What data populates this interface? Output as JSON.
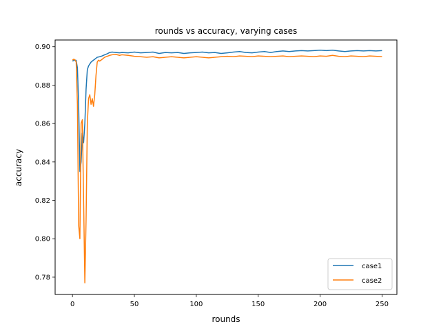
{
  "chart_data": {
    "type": "line",
    "title": "rounds vs accuracy, varying cases",
    "xlabel": "rounds",
    "ylabel": "accuracy",
    "xlim": [
      -14,
      262
    ],
    "ylim": [
      0.771,
      0.9035
    ],
    "xticks": [
      0,
      50,
      100,
      150,
      200,
      250
    ],
    "xtick_labels": [
      "0",
      "50",
      "100",
      "150",
      "200",
      "250"
    ],
    "yticks": [
      0.78,
      0.8,
      0.82,
      0.84,
      0.86,
      0.88,
      0.9
    ],
    "ytick_labels": [
      "0.78",
      "0.80",
      "0.82",
      "0.84",
      "0.86",
      "0.88",
      "0.90"
    ],
    "grid": false,
    "legend": "lower-right",
    "series": [
      {
        "name": "case1",
        "color": "#1f77b4",
        "x": [
          0,
          1,
          2,
          3,
          4,
          5,
          6,
          7,
          8,
          9,
          10,
          11,
          12,
          13,
          14,
          15,
          16,
          17,
          18,
          19,
          20,
          22,
          24,
          26,
          28,
          30,
          32,
          35,
          38,
          40,
          45,
          50,
          55,
          60,
          65,
          70,
          75,
          80,
          85,
          90,
          95,
          100,
          105,
          110,
          115,
          120,
          125,
          130,
          135,
          140,
          145,
          150,
          155,
          160,
          165,
          170,
          175,
          180,
          185,
          190,
          195,
          200,
          205,
          210,
          215,
          220,
          225,
          230,
          235,
          240,
          245,
          250
        ],
        "values": [
          0.8925,
          0.8928,
          0.893,
          0.8929,
          0.889,
          0.87,
          0.835,
          0.84,
          0.855,
          0.85,
          0.86,
          0.878,
          0.888,
          0.89,
          0.891,
          0.892,
          0.8925,
          0.893,
          0.8935,
          0.894,
          0.8945,
          0.8948,
          0.8952,
          0.8958,
          0.8963,
          0.897,
          0.8972,
          0.897,
          0.8968,
          0.897,
          0.8968,
          0.8972,
          0.8968,
          0.897,
          0.8972,
          0.8965,
          0.897,
          0.8968,
          0.897,
          0.8965,
          0.8968,
          0.897,
          0.8972,
          0.8968,
          0.897,
          0.8965,
          0.8968,
          0.8972,
          0.8975,
          0.897,
          0.8968,
          0.8972,
          0.8975,
          0.897,
          0.8975,
          0.8978,
          0.8975,
          0.8978,
          0.898,
          0.8978,
          0.898,
          0.8982,
          0.898,
          0.8982,
          0.8978,
          0.8975,
          0.8978,
          0.898,
          0.8978,
          0.898,
          0.8978,
          0.898
        ]
      },
      {
        "name": "case2",
        "color": "#ff7f0e",
        "x": [
          0,
          1,
          2,
          3,
          4,
          5,
          6,
          7,
          8,
          9,
          10,
          11,
          12,
          13,
          14,
          15,
          16,
          17,
          18,
          19,
          20,
          21,
          22,
          24,
          26,
          28,
          30,
          32,
          35,
          38,
          40,
          45,
          50,
          55,
          60,
          65,
          70,
          75,
          80,
          85,
          90,
          95,
          100,
          105,
          110,
          115,
          120,
          125,
          130,
          135,
          140,
          145,
          150,
          155,
          160,
          165,
          170,
          175,
          180,
          185,
          190,
          195,
          200,
          205,
          210,
          215,
          220,
          225,
          230,
          235,
          240,
          245,
          250
        ],
        "values": [
          0.893,
          0.8935,
          0.8932,
          0.892,
          0.87,
          0.807,
          0.8,
          0.86,
          0.862,
          0.82,
          0.777,
          0.81,
          0.86,
          0.873,
          0.875,
          0.87,
          0.873,
          0.869,
          0.875,
          0.885,
          0.892,
          0.893,
          0.8925,
          0.8935,
          0.8945,
          0.895,
          0.8955,
          0.8958,
          0.896,
          0.8955,
          0.8958,
          0.8955,
          0.895,
          0.8948,
          0.8945,
          0.8948,
          0.8942,
          0.8945,
          0.8948,
          0.8945,
          0.8942,
          0.8945,
          0.8948,
          0.8945,
          0.8942,
          0.8945,
          0.8948,
          0.895,
          0.8948,
          0.8952,
          0.895,
          0.8948,
          0.8952,
          0.895,
          0.8948,
          0.895,
          0.8952,
          0.8948,
          0.895,
          0.8952,
          0.895,
          0.8948,
          0.8952,
          0.895,
          0.8955,
          0.895,
          0.8948,
          0.8952,
          0.895,
          0.8948,
          0.8952,
          0.895,
          0.8948
        ]
      }
    ]
  }
}
